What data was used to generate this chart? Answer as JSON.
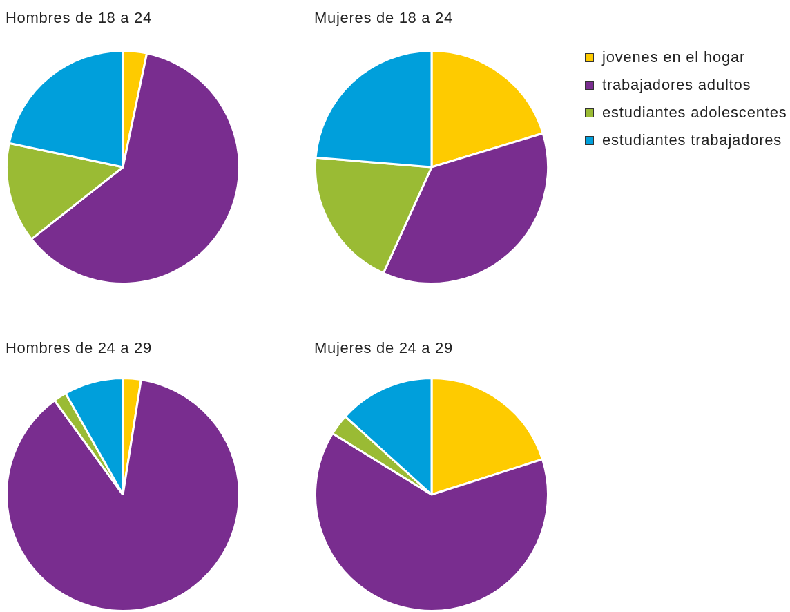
{
  "chart_data": [
    {
      "type": "pie",
      "title": "Hombres de 18 a 24",
      "categories": [
        null,
        null,
        null,
        null
      ],
      "values": [
        3.3,
        61.1,
        13.9,
        21.7
      ],
      "colors": [
        "#fecb00",
        "#792d8f",
        "#9abb34",
        "#009fdb"
      ]
    },
    {
      "type": "pie",
      "title": "Mujeres de 18 a 24",
      "categories": [
        "jovenes en el hogar",
        "trabajadores adultos",
        "estudiantes adolescentes",
        "estudiantes trabajadores"
      ],
      "values": [
        20.3,
        36.5,
        19.5,
        23.7
      ],
      "colors": [
        "#fecb00",
        "#792d8f",
        "#9abb34",
        "#009fdb"
      ],
      "legend": "right"
    },
    {
      "type": "pie",
      "title": "Hombres de 24 a 29",
      "categories": [
        null,
        null,
        null,
        null
      ],
      "values": [
        2.5,
        87.5,
        1.8,
        8.2
      ],
      "colors": [
        "#fecb00",
        "#792d8f",
        "#9abb34",
        "#009fdb"
      ]
    },
    {
      "type": "pie",
      "title": "Mujeres de 24 a 29",
      "categories": [
        null,
        null,
        null,
        null
      ],
      "values": [
        20.1,
        63.7,
        2.9,
        13.3
      ],
      "colors": [
        "#fecb00",
        "#792d8f",
        "#9abb34",
        "#009fdb"
      ]
    }
  ]
}
